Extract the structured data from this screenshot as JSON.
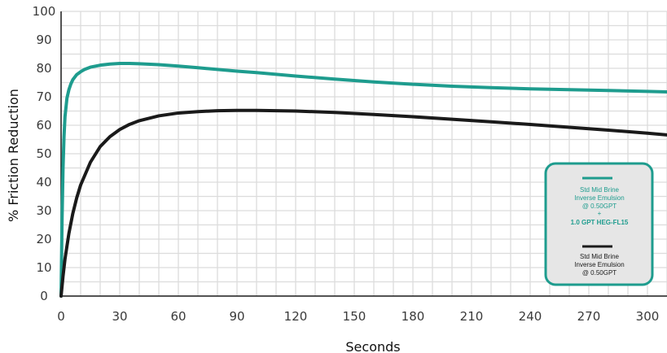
{
  "chart_data": {
    "type": "line",
    "xlabel": "Seconds",
    "ylabel": "% Friction Reduction",
    "x_ticks": [
      "0",
      "30",
      "60",
      "90",
      "120",
      "150",
      "180",
      "210",
      "240",
      "270",
      "300"
    ],
    "y_ticks": [
      "0",
      "10",
      "20",
      "30",
      "40",
      "50",
      "60",
      "70",
      "80",
      "90",
      "100"
    ],
    "xlim": [
      0,
      310
    ],
    "ylim": [
      0,
      100
    ],
    "grid": true,
    "legend_position": "bottom-right",
    "series": [
      {
        "legend_lines": [
          "Std Mid Brine",
          "Inverse Emulsion",
          "@ 0.50GPT",
          "+",
          "1.0 GPT HEG-FL15"
        ],
        "color": "#1e9c8e",
        "x": [
          0,
          0.5,
          1,
          1.5,
          2,
          3,
          4,
          5,
          6,
          8,
          10,
          12,
          15,
          20,
          25,
          30,
          35,
          40,
          50,
          60,
          70,
          80,
          90,
          100,
          120,
          140,
          160,
          180,
          200,
          220,
          240,
          260,
          280,
          300,
          310
        ],
        "y": [
          0,
          27,
          45,
          56,
          63,
          69.5,
          72.5,
          74.5,
          76,
          77.8,
          78.8,
          79.6,
          80.4,
          81.1,
          81.5,
          81.7,
          81.7,
          81.6,
          81.3,
          80.8,
          80.2,
          79.6,
          79,
          78.5,
          77.3,
          76.2,
          75.2,
          74.4,
          73.7,
          73.2,
          72.8,
          72.5,
          72.2,
          71.9,
          71.7
        ]
      },
      {
        "legend_lines": [
          "Std Mid Brine",
          "Inverse Emulsion",
          "@ 0.50GPT"
        ],
        "color": "#1a1a1a",
        "x": [
          0,
          1,
          2,
          4,
          6,
          8,
          10,
          15,
          20,
          25,
          30,
          35,
          40,
          50,
          60,
          70,
          80,
          90,
          100,
          120,
          140,
          160,
          180,
          200,
          220,
          240,
          260,
          280,
          300,
          310
        ],
        "y": [
          0,
          7,
          13,
          22,
          29,
          34.5,
          39,
          47,
          52.5,
          56,
          58.5,
          60.3,
          61.6,
          63.3,
          64.3,
          64.8,
          65.1,
          65.2,
          65.2,
          65,
          64.5,
          63.8,
          63,
          62.1,
          61.2,
          60.3,
          59.3,
          58.3,
          57.2,
          56.6
        ]
      }
    ]
  }
}
